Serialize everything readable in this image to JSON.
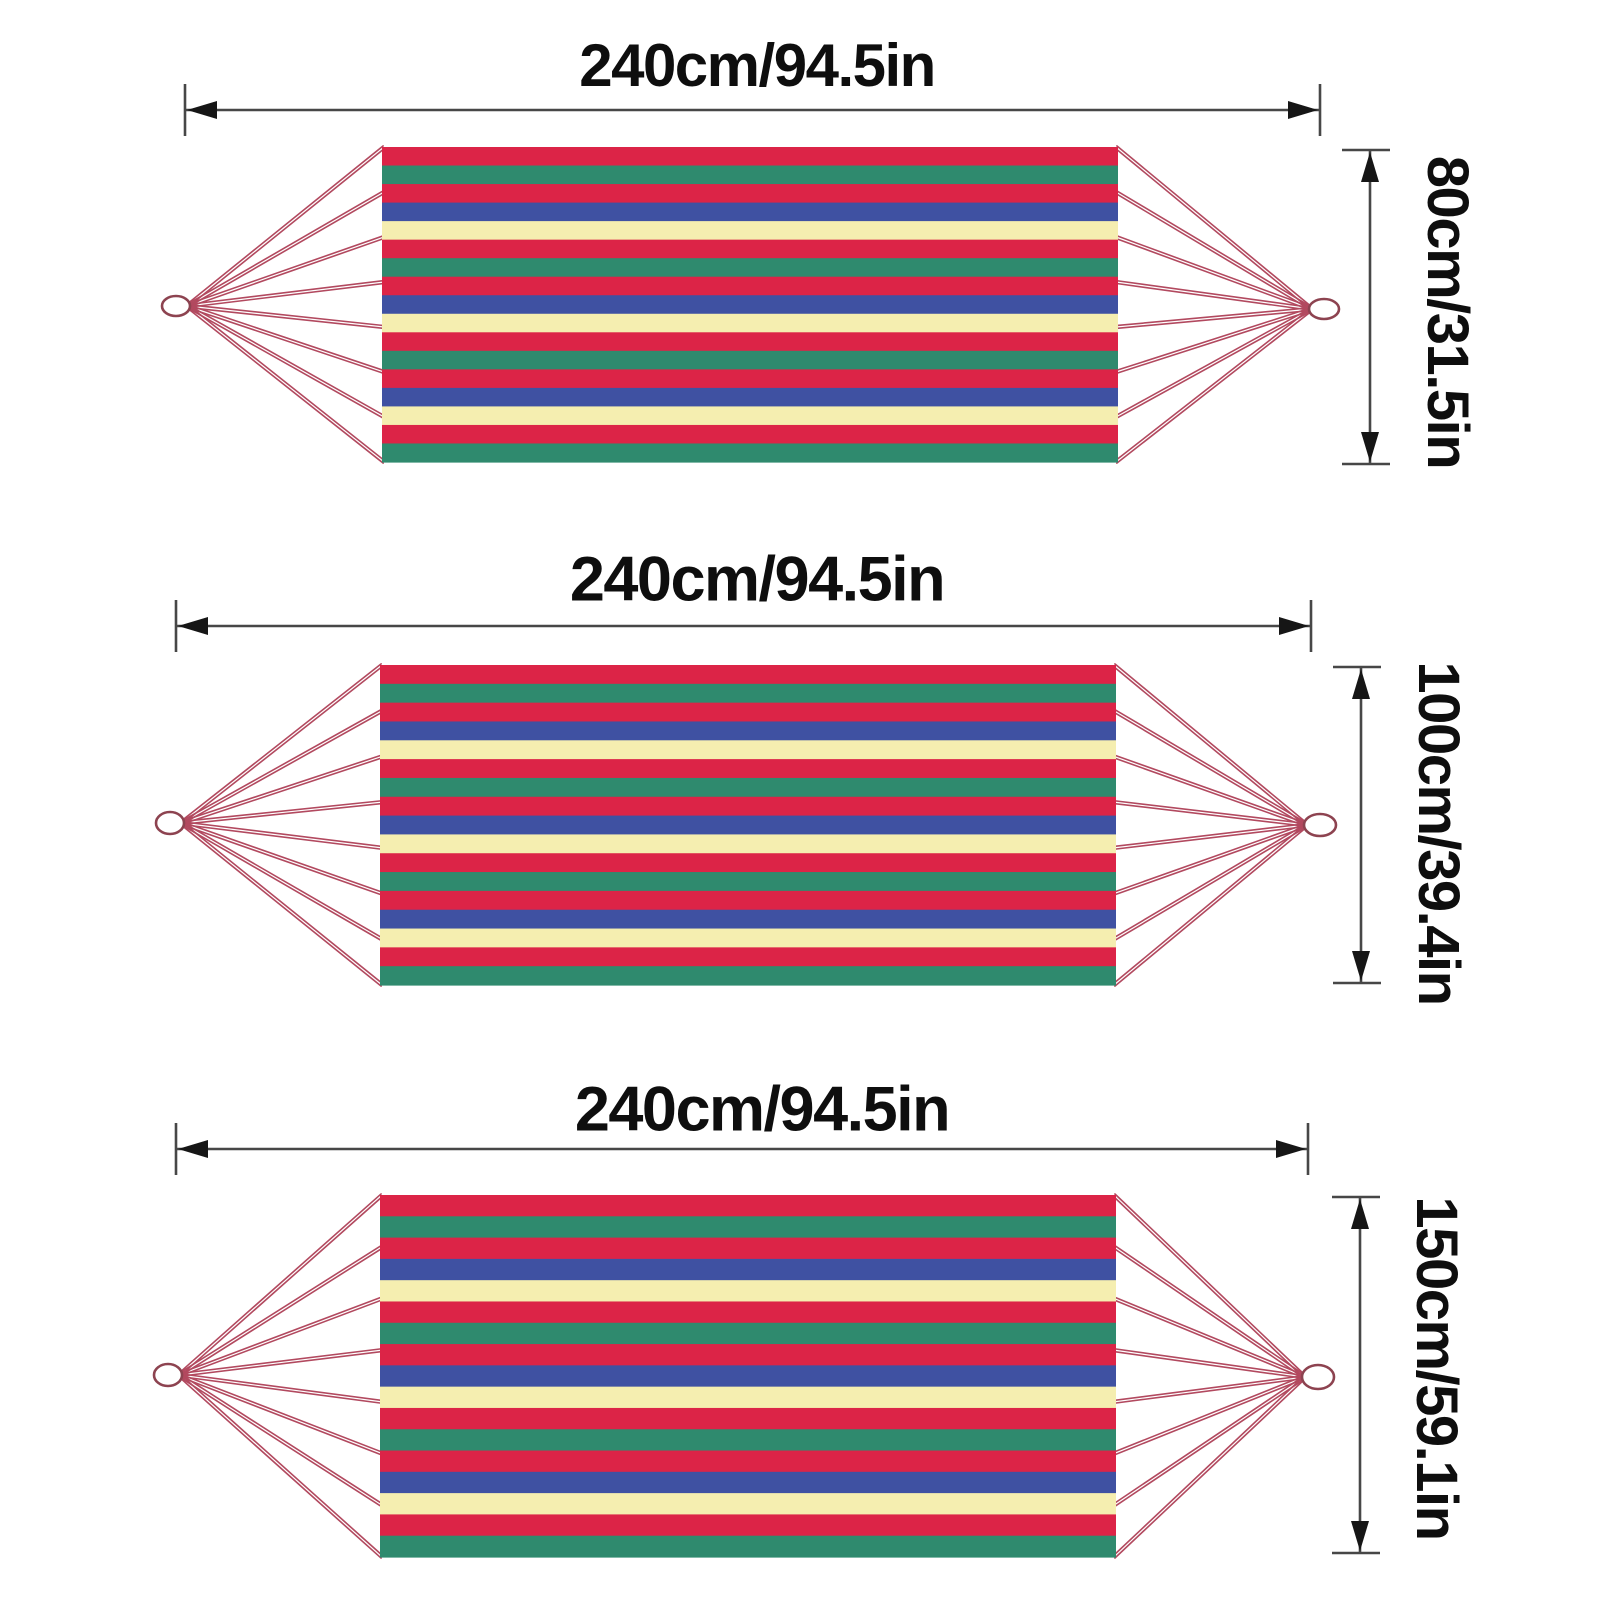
{
  "figures": [
    {
      "name": "hammock-size-80cm",
      "length_label": "240cm/94.5in",
      "width_label": "80cm/31.5in",
      "length_cm": 240,
      "length_in": 94.5,
      "width_cm": 80,
      "width_in": 31.5
    },
    {
      "name": "hammock-size-100cm",
      "length_label": "240cm/94.5in",
      "width_label": "100cm/39.4in",
      "length_cm": 240,
      "length_in": 94.5,
      "width_cm": 100,
      "width_in": 39.4
    },
    {
      "name": "hammock-size-150cm",
      "length_label": "240cm/94.5in",
      "width_label": "150cm/59.1in",
      "length_cm": 240,
      "length_in": 94.5,
      "width_cm": 150,
      "width_in": 59.1
    }
  ],
  "fabric": {
    "stripe_sequence": [
      "red",
      "green",
      "red",
      "blue",
      "cream",
      "red",
      "green",
      "red",
      "blue",
      "cream",
      "red",
      "green",
      "red",
      "blue",
      "cream",
      "red",
      "green"
    ],
    "palette": {
      "red": "#dc2447",
      "green": "#2f8a6e",
      "blue": "#3f51a2",
      "cream": "#f5eeb0"
    }
  },
  "rope": {
    "color": "#b2495f",
    "ring_outline": "#8d4350",
    "ring_fill": "#ffffff",
    "ropes_per_side": 8
  },
  "dimension_style": {
    "line_color": "#474747",
    "arrow_color": "#161616",
    "text_color": "#0e0e0e"
  },
  "background": "#ffffff"
}
